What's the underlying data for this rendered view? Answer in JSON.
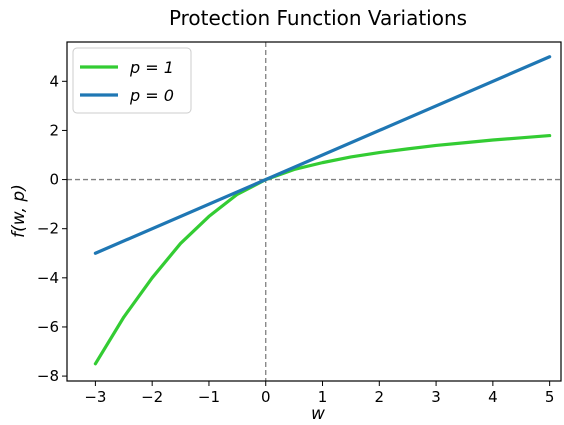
{
  "chart_data": {
    "type": "line",
    "title": "Protection Function Variations",
    "xlabel": "w",
    "ylabel": "f(w, p)",
    "xlim": [
      -3.5,
      5.2
    ],
    "ylim": [
      -8.2,
      5.6
    ],
    "xticks": [
      -3,
      -2,
      -1,
      0,
      1,
      2,
      3,
      4,
      5
    ],
    "yticks": [
      -8,
      -6,
      -4,
      -2,
      0,
      2,
      4
    ],
    "xtick_labels": [
      "−3",
      "−2",
      "−1",
      "0",
      "1",
      "2",
      "3",
      "4",
      "5"
    ],
    "ytick_labels": [
      "−8",
      "−6",
      "−4",
      "−2",
      "0",
      "2",
      "4"
    ],
    "grid": false,
    "reference_lines": {
      "x": 0,
      "y": 0,
      "style": "dashed",
      "color": "#808080"
    },
    "legend": {
      "location": "upper-left"
    },
    "series": [
      {
        "name": "p = 1",
        "color": "#33cc33",
        "x": [
          -3.0,
          -2.5,
          -2.0,
          -1.5,
          -1.0,
          -0.5,
          0.0,
          0.5,
          1.0,
          1.5,
          2.0,
          2.5,
          3.0,
          3.5,
          4.0,
          4.5,
          5.0
        ],
        "y": [
          -7.5,
          -5.6,
          -4.0,
          -2.6,
          -1.5,
          -0.6,
          0.0,
          0.41,
          0.69,
          0.92,
          1.1,
          1.25,
          1.39,
          1.5,
          1.61,
          1.7,
          1.79
        ]
      },
      {
        "name": "p = 0",
        "color": "#1f77b4",
        "x": [
          -3.0,
          5.0
        ],
        "y": [
          -3.0,
          5.0
        ]
      }
    ]
  }
}
